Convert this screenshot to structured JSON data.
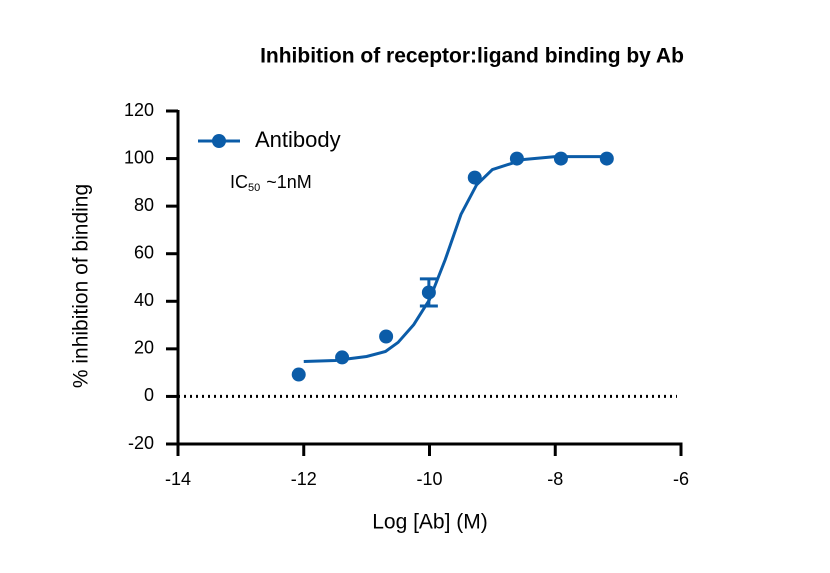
{
  "chart_data": {
    "type": "scatter",
    "title": "Inhibition of receptor:ligand binding by Ab",
    "x_label": "Log [Ab] (M)",
    "y_label": "% inhibition of binding",
    "x": [
      -12.08,
      -11.39,
      -10.69,
      -10.01,
      -9.28,
      -8.61,
      -7.91,
      -7.18
    ],
    "series": [
      {
        "name": "Antibody",
        "color": "#0b5ca8",
        "values": [
          9.2,
          16.4,
          25.2,
          43.7,
          92,
          100,
          100,
          100
        ],
        "errors": [
          null,
          null,
          null,
          5.7,
          null,
          null,
          null,
          null
        ]
      }
    ],
    "fit": {
      "x": [
        -12.0,
        -11.5,
        -11.0,
        -10.7,
        -10.5,
        -10.25,
        -10.0,
        -9.75,
        -9.5,
        -9.25,
        -9.0,
        -8.5,
        -8.0,
        -7.2
      ],
      "values": [
        14.7,
        15.1,
        16.8,
        18.9,
        22.7,
        30.2,
        40.7,
        57.5,
        76.5,
        89,
        95.4,
        99.6,
        100.8,
        100.8
      ]
    },
    "annotation": {
      "text": "IC",
      "subscript": "50",
      "suffix": "~1nM"
    },
    "reference_line": 0,
    "xlim": [
      -14,
      -6
    ],
    "xticks": [
      -14,
      -12,
      -10,
      -8,
      -6
    ],
    "ylim": [
      -20,
      120
    ],
    "yticks": [
      -20,
      0,
      20,
      40,
      60,
      80,
      100,
      120
    ],
    "legend": "top-left"
  }
}
